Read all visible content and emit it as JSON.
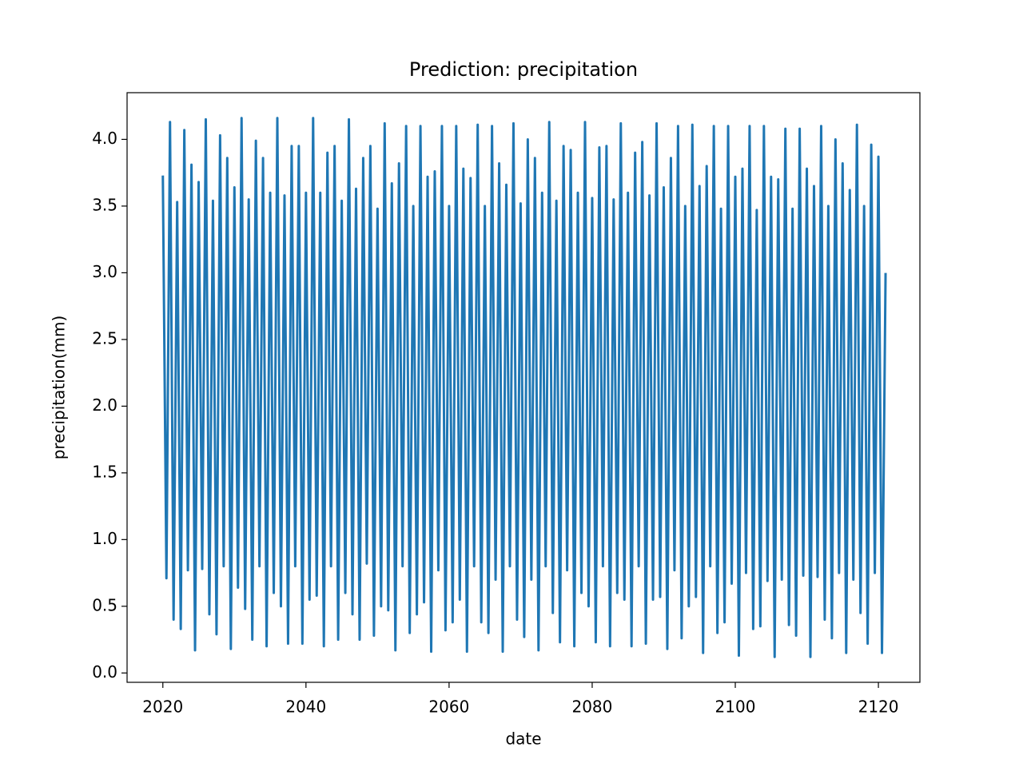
{
  "chart_data": {
    "type": "line",
    "title": "Prediction: precipitation",
    "x_label": "date",
    "y_label": "precipitation(mm)",
    "color": "#1f77b4",
    "grid": false,
    "xlim": [
      2015,
      2125.8
    ],
    "ylim": [
      -0.07,
      4.35
    ],
    "xticks": [
      2020,
      2040,
      2060,
      2080,
      2100,
      2120
    ],
    "yticks": [
      {
        "value": 0,
        "label": "0.0"
      },
      {
        "value": 0.5,
        "label": "0.5"
      },
      {
        "value": 1,
        "label": "1.0"
      },
      {
        "value": 1.5,
        "label": "1.5"
      },
      {
        "value": 2,
        "label": "2.0"
      },
      {
        "value": 2.5,
        "label": "2.5"
      },
      {
        "value": 3,
        "label": "3.0"
      },
      {
        "value": 3.5,
        "label": "3.5"
      },
      {
        "value": 4,
        "label": "4.0"
      }
    ],
    "x": [
      2020,
      2020.5,
      2021,
      2021.5,
      2022,
      2022.5,
      2023,
      2023.5,
      2024,
      2024.5,
      2025,
      2025.5,
      2026,
      2026.5,
      2027,
      2027.5,
      2028,
      2028.5,
      2029,
      2029.5,
      2030,
      2030.5,
      2031,
      2031.5,
      2032,
      2032.5,
      2033,
      2033.5,
      2034,
      2034.5,
      2035,
      2035.5,
      2036,
      2036.5,
      2037,
      2037.5,
      2038,
      2038.5,
      2039,
      2039.5,
      2040,
      2040.5,
      2041,
      2041.5,
      2042,
      2042.5,
      2043,
      2043.5,
      2044,
      2044.5,
      2045,
      2045.5,
      2046,
      2046.5,
      2047,
      2047.5,
      2048,
      2048.5,
      2049,
      2049.5,
      2050,
      2050.5,
      2051,
      2051.5,
      2052,
      2052.5,
      2053,
      2053.5,
      2054,
      2054.5,
      2055,
      2055.5,
      2056,
      2056.5,
      2057,
      2057.5,
      2058,
      2058.5,
      2059,
      2059.5,
      2060,
      2060.5,
      2061,
      2061.5,
      2062,
      2062.5,
      2063,
      2063.5,
      2064,
      2064.5,
      2065,
      2065.5,
      2066,
      2066.5,
      2067,
      2067.5,
      2068,
      2068.5,
      2069,
      2069.5,
      2070,
      2070.5,
      2071,
      2071.5,
      2072,
      2072.5,
      2073,
      2073.5,
      2074,
      2074.5,
      2075,
      2075.5,
      2076,
      2076.5,
      2077,
      2077.5,
      2078,
      2078.5,
      2079,
      2079.5,
      2080,
      2080.5,
      2081,
      2081.5,
      2082,
      2082.5,
      2083,
      2083.5,
      2084,
      2084.5,
      2085,
      2085.5,
      2086,
      2086.5,
      2087,
      2087.5,
      2088,
      2088.5,
      2089,
      2089.5,
      2090,
      2090.5,
      2091,
      2091.5,
      2092,
      2092.5,
      2093,
      2093.5,
      2094,
      2094.5,
      2095,
      2095.5,
      2096,
      2096.5,
      2097,
      2097.5,
      2098,
      2098.5,
      2099,
      2099.5,
      2100,
      2100.5,
      2101,
      2101.5,
      2102,
      2102.5,
      2103,
      2103.5,
      2104,
      2104.5,
      2105,
      2105.5,
      2106,
      2106.5,
      2107,
      2107.5,
      2108,
      2108.5,
      2109,
      2109.5,
      2110,
      2110.5,
      2111,
      2111.5,
      2112,
      2112.5,
      2113,
      2113.5,
      2114,
      2114.5,
      2115,
      2115.5,
      2116,
      2116.5,
      2117,
      2117.5,
      2118,
      2118.5,
      2119,
      2119.5,
      2120,
      2120.5,
      2121
    ],
    "values": [
      3.72,
      0.71,
      4.13,
      0.4,
      3.53,
      0.33,
      4.07,
      0.77,
      3.81,
      0.17,
      3.68,
      0.78,
      4.15,
      0.44,
      3.54,
      0.29,
      4.03,
      0.8,
      3.86,
      0.18,
      3.64,
      0.64,
      4.16,
      0.48,
      3.55,
      0.25,
      3.99,
      0.8,
      3.86,
      0.2,
      3.6,
      0.6,
      4.16,
      0.5,
      3.58,
      0.22,
      3.95,
      0.8,
      3.95,
      0.22,
      3.6,
      0.55,
      4.16,
      0.58,
      3.6,
      0.2,
      3.9,
      0.8,
      3.95,
      0.25,
      3.54,
      0.6,
      4.15,
      0.44,
      3.63,
      0.25,
      3.86,
      0.82,
      3.95,
      0.28,
      3.48,
      0.5,
      4.12,
      0.47,
      3.67,
      0.17,
      3.82,
      0.8,
      4.1,
      0.3,
      3.5,
      0.44,
      4.1,
      0.53,
      3.72,
      0.16,
      3.76,
      0.77,
      4.1,
      0.32,
      3.5,
      0.38,
      4.1,
      0.55,
      3.78,
      0.16,
      3.71,
      0.8,
      4.11,
      0.38,
      3.5,
      0.3,
      4.1,
      0.7,
      3.82,
      0.16,
      3.66,
      0.8,
      4.12,
      0.4,
      3.52,
      0.27,
      4.0,
      0.7,
      3.86,
      0.17,
      3.6,
      0.8,
      4.13,
      0.45,
      3.54,
      0.23,
      3.95,
      0.77,
      3.92,
      0.2,
      3.6,
      0.6,
      4.13,
      0.5,
      3.56,
      0.23,
      3.94,
      0.8,
      3.95,
      0.2,
      3.55,
      0.6,
      4.12,
      0.55,
      3.6,
      0.2,
      3.9,
      0.8,
      3.98,
      0.22,
      3.58,
      0.55,
      4.12,
      0.57,
      3.64,
      0.18,
      3.86,
      0.77,
      4.1,
      0.26,
      3.5,
      0.5,
      4.11,
      0.57,
      3.65,
      0.15,
      3.8,
      0.8,
      4.1,
      0.3,
      3.48,
      0.38,
      4.1,
      0.67,
      3.72,
      0.13,
      3.78,
      0.75,
      4.1,
      0.33,
      3.47,
      0.35,
      4.1,
      0.69,
      3.72,
      0.12,
      3.7,
      0.7,
      4.08,
      0.36,
      3.48,
      0.28,
      4.08,
      0.73,
      3.78,
      0.12,
      3.65,
      0.72,
      4.1,
      0.4,
      3.5,
      0.26,
      4.0,
      0.75,
      3.82,
      0.15,
      3.62,
      0.7,
      4.11,
      0.45,
      3.5,
      0.22,
      3.96,
      0.75,
      3.87,
      0.15,
      2.99
    ]
  }
}
